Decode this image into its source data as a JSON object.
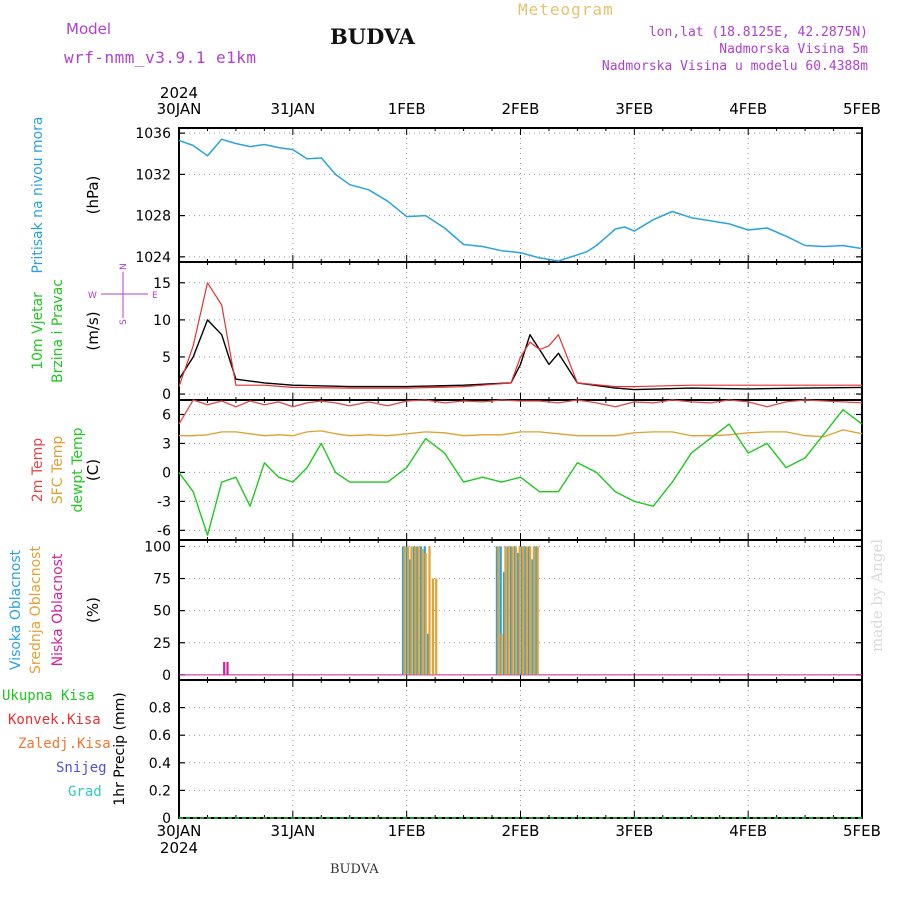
{
  "header": {
    "model_label": "Model",
    "model_name": "wrf-nmm_v3.9.1 e1km",
    "station": "BUDVA",
    "meteogram_label": "Meteogram",
    "lonlat": "lon,lat (18.8125E, 42.2875N)",
    "altitude": "Nadmorska Visina 5m",
    "model_altitude": "Nadmorska Visina u modelu 60.4388m",
    "footer_station": "BUDVA",
    "credit": "made by Angel"
  },
  "time_axis": {
    "year": "2024",
    "ticks": [
      "30JAN",
      "31JAN",
      "1FEB",
      "2FEB",
      "3FEB",
      "4FEB",
      "5FEB"
    ],
    "hours_total": 144
  },
  "colors": {
    "pressure": "#29a3e0",
    "wind_speed": "#000000",
    "wind_gust": "#e83030",
    "temp_2m": "#e04848",
    "temp_sfc": "#e0a030",
    "dewpoint": "#20c820",
    "cloud_high": "#29a3e0",
    "cloud_mid": "#e8a030",
    "cloud_low": "#d020a0",
    "rain_total": "#20c820",
    "rain_conv": "#e83030",
    "rain_frozen": "#f07830",
    "snow": "#5050e0",
    "graupel": "#30c8c8",
    "compass": "#b040d0"
  },
  "chart_data": [
    {
      "type": "line",
      "name": "pressure",
      "ylabel_lines": [
        "Pritisak na nivou mora"
      ],
      "units": "(hPa)",
      "ylim": [
        1023.5,
        1036.5
      ],
      "yticks": [
        1024,
        1028,
        1032,
        1036
      ],
      "grid": true,
      "x_hours": [
        0,
        3,
        6,
        9,
        12,
        15,
        18,
        21,
        24,
        27,
        30,
        33,
        36,
        40,
        44,
        48,
        52,
        56,
        60,
        64,
        68,
        72,
        76,
        80,
        84,
        86,
        88,
        90,
        92,
        94,
        96,
        100,
        104,
        108,
        112,
        116,
        120,
        124,
        128,
        132,
        136,
        140,
        144
      ],
      "series": [
        {
          "values": [
            1035.3,
            1034.8,
            1033.8,
            1035.4,
            1035.0,
            1034.7,
            1034.9,
            1034.6,
            1034.4,
            1033.5,
            1033.6,
            1032.0,
            1031.0,
            1030.5,
            1029.4,
            1027.9,
            1028.0,
            1026.8,
            1025.2,
            1025.0,
            1024.6,
            1024.4,
            1023.9,
            1023.6,
            1024.2,
            1024.5,
            1025.1,
            1025.9,
            1026.7,
            1026.9,
            1026.5,
            1027.6,
            1028.4,
            1027.8,
            1027.5,
            1027.2,
            1026.6,
            1026.8,
            1026.0,
            1025.1,
            1025.0,
            1025.1,
            1024.8
          ]
        }
      ]
    },
    {
      "type": "line",
      "name": "wind",
      "ylabel_lines": [
        "10m Vjetar",
        "Brzina i Pravac"
      ],
      "units": "(m/s)",
      "ylim": [
        -0.8,
        17.8
      ],
      "yticks": [
        0,
        5,
        10,
        15
      ],
      "grid": true,
      "compass": {
        "n": "N",
        "w": "W",
        "e": "E",
        "s": "S"
      },
      "x_hours": [
        0,
        3,
        6,
        9,
        12,
        18,
        24,
        36,
        48,
        60,
        70,
        72,
        74,
        76,
        78,
        80,
        84,
        92,
        96,
        108,
        120,
        132,
        144
      ],
      "series": [
        {
          "name": "speed",
          "values": [
            2.0,
            5.0,
            10.0,
            8.0,
            2.0,
            1.5,
            1.2,
            1.0,
            1.0,
            1.2,
            1.5,
            4.0,
            8.0,
            6.0,
            4.0,
            5.5,
            1.5,
            0.8,
            0.6,
            0.8,
            0.7,
            0.8,
            0.9
          ]
        },
        {
          "name": "gust",
          "values": [
            1.0,
            6.5,
            15.0,
            12.0,
            1.2,
            1.2,
            0.9,
            0.8,
            0.8,
            1.0,
            1.5,
            5.0,
            7.0,
            6.0,
            6.5,
            8.0,
            1.5,
            1.0,
            1.0,
            1.2,
            1.2,
            1.2,
            1.2
          ]
        }
      ]
    },
    {
      "type": "line",
      "name": "temperature",
      "ylabel_lines": [
        "2m Temp",
        "SFC Temp",
        "dewpt Temp"
      ],
      "units": "(C)",
      "ylim": [
        -7,
        7.5
      ],
      "yticks": [
        -6,
        -3,
        0,
        3,
        6
      ],
      "grid": true,
      "x_hours": [
        0,
        3,
        6,
        9,
        12,
        15,
        18,
        21,
        24,
        27,
        30,
        33,
        36,
        40,
        44,
        48,
        52,
        56,
        60,
        64,
        68,
        72,
        76,
        80,
        84,
        88,
        92,
        96,
        100,
        104,
        108,
        112,
        116,
        120,
        124,
        128,
        132,
        136,
        140,
        144
      ],
      "series": [
        {
          "name": "t2m",
          "values": [
            5.0,
            7.5,
            7.0,
            7.4,
            6.8,
            7.4,
            7.0,
            7.3,
            6.8,
            7.2,
            7.4,
            7.2,
            6.9,
            7.3,
            6.9,
            7.4,
            7.5,
            7.2,
            7.4,
            7.3,
            7.5,
            7.4,
            7.4,
            7.2,
            7.5,
            7.2,
            6.8,
            7.3,
            7.2,
            7.5,
            7.3,
            7.2,
            7.5,
            7.3,
            6.8,
            7.3,
            7.5,
            7.4,
            7.3,
            7.2
          ]
        },
        {
          "name": "tsfc",
          "values": [
            3.8,
            3.8,
            3.9,
            4.2,
            4.2,
            4.0,
            3.8,
            3.9,
            3.8,
            4.2,
            4.3,
            4.0,
            3.8,
            3.9,
            3.8,
            4.0,
            4.2,
            4.1,
            3.8,
            3.9,
            3.9,
            4.2,
            4.2,
            4.0,
            3.8,
            3.8,
            3.8,
            4.1,
            4.2,
            4.2,
            3.8,
            3.8,
            3.9,
            4.1,
            4.2,
            4.2,
            3.8,
            3.7,
            4.4,
            4.0
          ]
        },
        {
          "name": "dewpt",
          "values": [
            0.0,
            -2.0,
            -6.5,
            -1.0,
            -0.5,
            -3.5,
            1.0,
            -0.5,
            -1.0,
            0.5,
            3.0,
            0.0,
            -1.0,
            -1.0,
            -1.0,
            0.5,
            3.5,
            2.0,
            -1.0,
            -0.5,
            -1.0,
            -0.5,
            -2.0,
            -2.0,
            1.0,
            0.0,
            -2.0,
            -3.0,
            -3.5,
            -1.0,
            2.0,
            3.5,
            5.0,
            2.0,
            3.0,
            0.5,
            1.5,
            4.0,
            6.5,
            5.0
          ]
        }
      ]
    },
    {
      "type": "bar",
      "name": "clouds",
      "ylabel_lines": [
        "Visoka Oblacnost",
        "Srednja Oblacnost",
        "Niska Oblacnost"
      ],
      "units": "(%)",
      "ylim": [
        -4,
        105
      ],
      "yticks": [
        0,
        25,
        50,
        75,
        100
      ],
      "grid": true,
      "series": [
        {
          "name": "high",
          "x_hours": [
            47.2,
            48.0,
            48.7,
            49.5,
            50.2,
            51.0,
            51.8,
            52.5,
            67.0,
            67.8,
            68.5,
            69.3,
            70.0,
            70.8,
            71.5,
            72.3,
            73.0,
            73.8,
            74.5,
            75.3
          ],
          "values": [
            100,
            100,
            90,
            100,
            100,
            100,
            100,
            32,
            100,
            100,
            80,
            100,
            100,
            100,
            95,
            100,
            100,
            100,
            90,
            100
          ]
        },
        {
          "name": "mid",
          "x_hours": [
            47.5,
            48.3,
            49.0,
            49.8,
            50.5,
            51.3,
            52.0,
            52.8,
            53.5,
            54.2,
            67.3,
            68.0,
            68.8,
            69.5,
            70.3,
            71.0,
            71.8,
            72.5,
            73.3,
            74.0,
            74.8,
            75.6
          ],
          "values": [
            100,
            100,
            100,
            100,
            100,
            98,
            95,
            100,
            75,
            75,
            100,
            32,
            100,
            100,
            100,
            100,
            100,
            100,
            100,
            100,
            100,
            100
          ]
        },
        {
          "name": "low",
          "x_hours": [
            9.5,
            10.2
          ],
          "values": [
            10,
            10
          ]
        }
      ]
    },
    {
      "type": "line",
      "name": "precipitation",
      "ylabel_lines": [
        "1hr Precip (mm)"
      ],
      "units": "",
      "legend": [
        "Ukupna Kisa",
        "Konvek.Kisa",
        "Zaledj.Kisa",
        "Snijeg",
        "Grad"
      ],
      "ylim": [
        0,
        1
      ],
      "yticks": [
        0,
        0.2,
        0.4,
        0.6,
        0.8
      ],
      "grid": true,
      "x_hours": [
        0,
        144
      ],
      "series": [
        {
          "name": "Ukupna Kisa",
          "values": [
            0,
            0
          ]
        }
      ]
    }
  ]
}
